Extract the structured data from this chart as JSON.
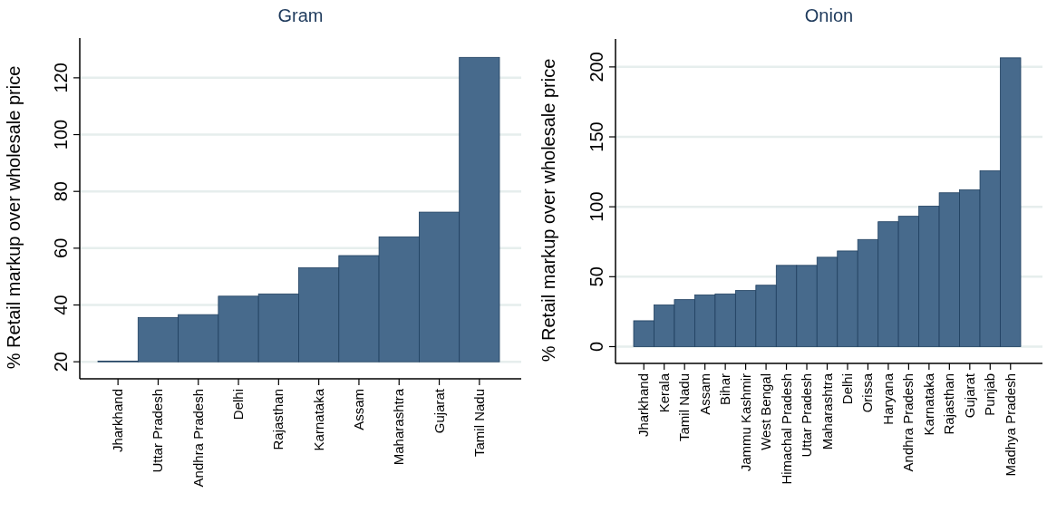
{
  "chart_data": [
    {
      "type": "bar",
      "title": "Gram",
      "ylabel": "% Retail markup over wholesale price",
      "categories": [
        "Jharkhand",
        "Uttar Pradesh",
        "Andhra Pradesh",
        "Delhi",
        "Rajasthan",
        "Karnataka",
        "Assam",
        "Maharashtra",
        "Gujarat",
        "Tamil Nadu"
      ],
      "base": [
        20,
        20,
        20,
        20,
        20,
        20,
        20,
        20,
        20,
        20
      ],
      "values": [
        0.2,
        15.6,
        16.6,
        23.1,
        23.9,
        33.1,
        37.4,
        44.0,
        52.7,
        107.2
      ],
      "color": "#476a8c",
      "ylim": [
        14,
        134
      ],
      "yticks": [
        20,
        40,
        60,
        80,
        100,
        120
      ],
      "grid": "y"
    },
    {
      "type": "bar",
      "title": "Onion",
      "ylabel": "% Retail markup over wholesale price",
      "categories": [
        "Jharkhand",
        "Kerala",
        "Tamil Nadu",
        "Assam",
        "Bihar",
        "Jammu Kashmir",
        "West Bengal",
        "Himachal Pradesh",
        "Uttar Pradesh",
        "Maharashtra",
        "Delhi",
        "Orissa",
        "Haryana",
        "Andhra Pradesh",
        "Karnataka",
        "Rajasthan",
        "Gujarat",
        "Punjab",
        "Madhya Pradesh"
      ],
      "values": [
        18.5,
        29.8,
        33.6,
        37.0,
        37.7,
        40.1,
        43.9,
        58.1,
        58.1,
        63.9,
        68.4,
        76.6,
        89.3,
        93.2,
        100.4,
        110.0,
        112.1,
        125.8,
        206.5
      ],
      "color": "#476a8c",
      "ylim": [
        -12,
        220
      ],
      "yticks": [
        0,
        50,
        100,
        150,
        200
      ],
      "grid": "y"
    }
  ]
}
